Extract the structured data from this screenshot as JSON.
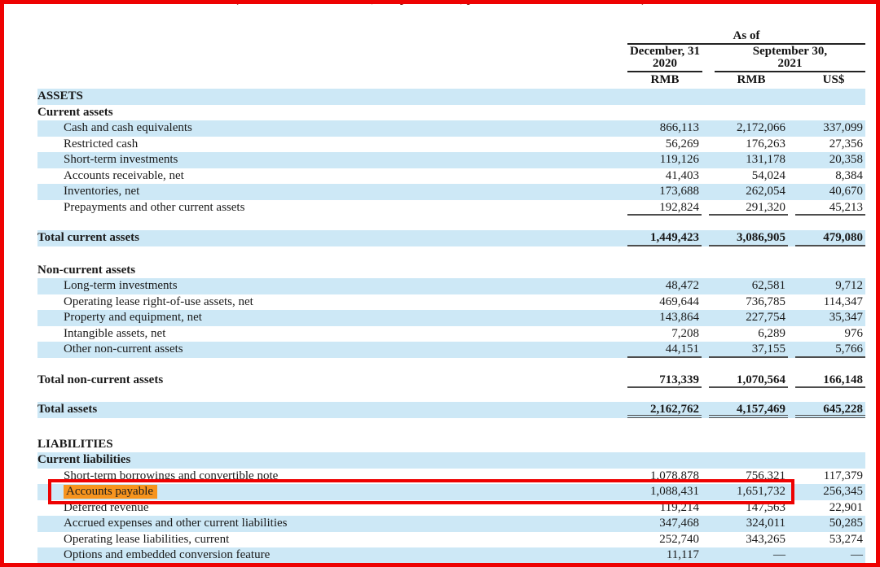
{
  "page": {
    "note": "(All amounts in thousands, except for share, per share data or otherwise noted)"
  },
  "header": {
    "as_of": "As of",
    "col1_line1": "December, 31",
    "col1_line2": "2020",
    "col2_line1": "September 30,",
    "col2_line2": "2021",
    "units": [
      "RMB",
      "RMB",
      "US$"
    ]
  },
  "annotation": {
    "type": "red-box-highlight",
    "target": "Accounts payable",
    "box_color": "#ee0202",
    "text_highlight_color": "#f7941e"
  },
  "colors": {
    "row_blue": "#cde8f6",
    "frame_red": "#ee0202",
    "note_red": "#7d1b11"
  },
  "table": {
    "rows": [
      {
        "t": "section",
        "bg": "blue",
        "label": "ASSETS"
      },
      {
        "t": "section",
        "bg": "white",
        "label": "Current assets"
      },
      {
        "t": "item",
        "bg": "blue",
        "label": "Cash and cash equivalents",
        "v": [
          "866,113",
          "2,172,066",
          "337,099"
        ]
      },
      {
        "t": "item",
        "bg": "white",
        "label": "Restricted cash",
        "v": [
          "56,269",
          "176,263",
          "27,356"
        ]
      },
      {
        "t": "item",
        "bg": "blue",
        "label": "Short-term investments",
        "v": [
          "119,126",
          "131,178",
          "20,358"
        ]
      },
      {
        "t": "item",
        "bg": "white",
        "label": "Accounts receivable, net",
        "v": [
          "41,403",
          "54,024",
          "8,384"
        ]
      },
      {
        "t": "item",
        "bg": "blue",
        "label": "Inventories, net",
        "v": [
          "173,688",
          "262,054",
          "40,670"
        ]
      },
      {
        "t": "item",
        "bg": "white",
        "label": "Prepayments and other current assets",
        "v": [
          "192,824",
          "291,320",
          "45,213"
        ],
        "line": "single"
      },
      {
        "t": "gap",
        "h": 18
      },
      {
        "t": "total",
        "bg": "blue",
        "label": "Total current assets",
        "v": [
          "1,449,423",
          "3,086,905",
          "479,080"
        ],
        "line": "single"
      },
      {
        "t": "gap",
        "h": 20
      },
      {
        "t": "section",
        "bg": "white",
        "label": "Non-current assets"
      },
      {
        "t": "item",
        "bg": "blue",
        "label": "Long-term investments",
        "v": [
          "48,472",
          "62,581",
          "9,712"
        ]
      },
      {
        "t": "item",
        "bg": "white",
        "label": "Operating lease right-of-use assets, net",
        "v": [
          "469,644",
          "736,785",
          "114,347"
        ]
      },
      {
        "t": "item",
        "bg": "blue",
        "label": "Property and equipment, net",
        "v": [
          "143,864",
          "227,754",
          "35,347"
        ]
      },
      {
        "t": "item",
        "bg": "white",
        "label": "Intangible assets, net",
        "v": [
          "7,208",
          "6,289",
          "976"
        ]
      },
      {
        "t": "item",
        "bg": "blue",
        "label": "Other non-current assets",
        "v": [
          "44,151",
          "37,155",
          "5,766"
        ],
        "line": "single"
      },
      {
        "t": "gap",
        "h": 18
      },
      {
        "t": "total",
        "bg": "white",
        "label": "Total non-current assets",
        "v": [
          "713,339",
          "1,070,564",
          "166,148"
        ],
        "line": "single"
      },
      {
        "t": "gap",
        "h": 17
      },
      {
        "t": "total",
        "bg": "blue",
        "label": "Total assets",
        "v": [
          "2,162,762",
          "4,157,469",
          "645,228"
        ],
        "line": "double"
      },
      {
        "t": "gap",
        "h": 23
      },
      {
        "t": "section",
        "bg": "white",
        "label": "LIABILITIES"
      },
      {
        "t": "section",
        "bg": "blue",
        "label": "Current liabilities"
      },
      {
        "t": "item",
        "bg": "white",
        "label": "Short-term borrowings and convertible note",
        "v": [
          "1,078,878",
          "756,321",
          "117,379"
        ]
      },
      {
        "t": "item",
        "bg": "blue",
        "label": "Accounts payable",
        "v": [
          "1,088,431",
          "1,651,732",
          "256,345"
        ],
        "highlight": true
      },
      {
        "t": "item",
        "bg": "white",
        "label": "Deferred revenue",
        "v": [
          "119,214",
          "147,563",
          "22,901"
        ]
      },
      {
        "t": "item",
        "bg": "blue",
        "label": "Accrued expenses and other current liabilities",
        "v": [
          "347,468",
          "324,011",
          "50,285"
        ]
      },
      {
        "t": "item",
        "bg": "white",
        "label": "Operating lease liabilities, current",
        "v": [
          "252,740",
          "343,265",
          "53,274"
        ]
      },
      {
        "t": "item",
        "bg": "blue",
        "label": "Options and embedded conversion feature",
        "v": [
          "11,117",
          "—",
          "—"
        ]
      }
    ]
  }
}
